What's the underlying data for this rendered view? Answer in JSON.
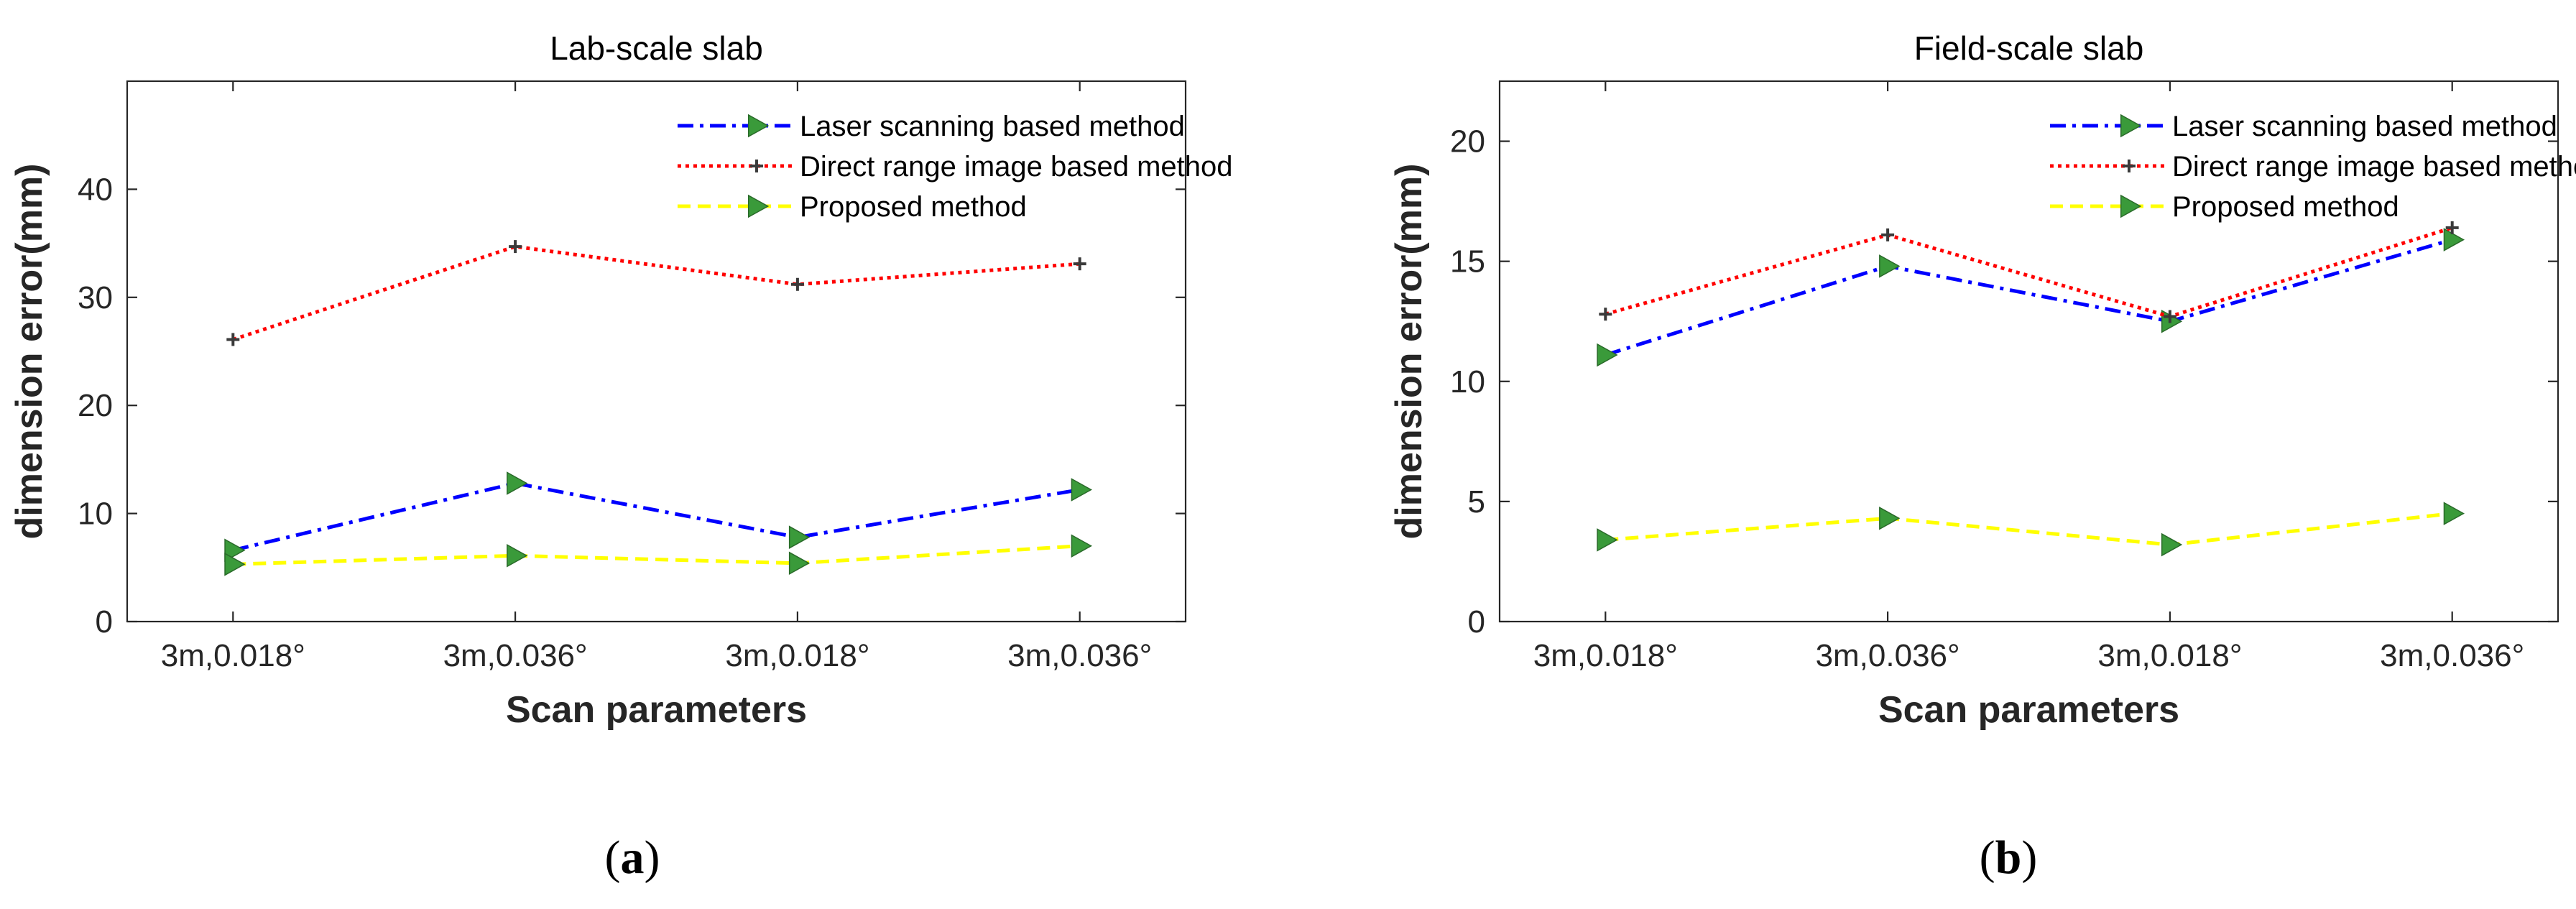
{
  "chart_data": [
    {
      "type": "line",
      "panel_label": {
        "open": "(",
        "letter": "a",
        "close": ")"
      },
      "title": "Lab-scale slab",
      "xlabel": "Scan parameters",
      "ylabel": "dimension error(mm)",
      "categories": [
        "3m,0.018°",
        "3m,0.036°",
        "3m,0.018°",
        "3m,0.036°"
      ],
      "ylim": [
        0,
        50
      ],
      "yticks": [
        0,
        10,
        20,
        30,
        40
      ],
      "legend_position": "top-right",
      "grid": false,
      "series": [
        {
          "name": "Laser scanning based method",
          "values": [
            6.6,
            12.8,
            7.8,
            12.2
          ],
          "color": "#0000ff",
          "dash": "dashdot",
          "marker": "triangle-right",
          "marker_color": "#3a9a3a"
        },
        {
          "name": "Direct range image based method",
          "values": [
            26.1,
            34.7,
            31.2,
            33.1
          ],
          "color": "#ff0000",
          "dash": "dotted",
          "marker": "plus",
          "marker_color": "#3a3a3a"
        },
        {
          "name": "Proposed method",
          "values": [
            5.3,
            6.1,
            5.4,
            7.0
          ],
          "color": "#ffff00",
          "dash": "dashed",
          "marker": "triangle-right",
          "marker_color": "#3a9a3a"
        }
      ]
    },
    {
      "type": "line",
      "panel_label": {
        "open": "(",
        "letter": "b",
        "close": ")"
      },
      "title": "Field-scale slab",
      "xlabel": "Scan parameters",
      "ylabel": "dimension error(mm)",
      "categories": [
        "3m,0.018°",
        "3m,0.036°",
        "3m,0.018°",
        "3m,0.036°"
      ],
      "ylim": [
        0,
        22.5
      ],
      "yticks": [
        0,
        5,
        10,
        15,
        20
      ],
      "legend_position": "top-right",
      "grid": false,
      "series": [
        {
          "name": "Laser scanning based method",
          "values": [
            11.1,
            14.8,
            12.5,
            15.9
          ],
          "color": "#0000ff",
          "dash": "dashdot",
          "marker": "triangle-right",
          "marker_color": "#3a9a3a"
        },
        {
          "name": "Direct range image based method",
          "values": [
            12.8,
            16.1,
            12.7,
            16.4
          ],
          "color": "#ff0000",
          "dash": "dotted",
          "marker": "plus",
          "marker_color": "#3a3a3a"
        },
        {
          "name": "Proposed method",
          "values": [
            3.4,
            4.3,
            3.2,
            4.5
          ],
          "color": "#ffff00",
          "dash": "dashed",
          "marker": "triangle-right",
          "marker_color": "#3a9a3a"
        }
      ]
    }
  ]
}
